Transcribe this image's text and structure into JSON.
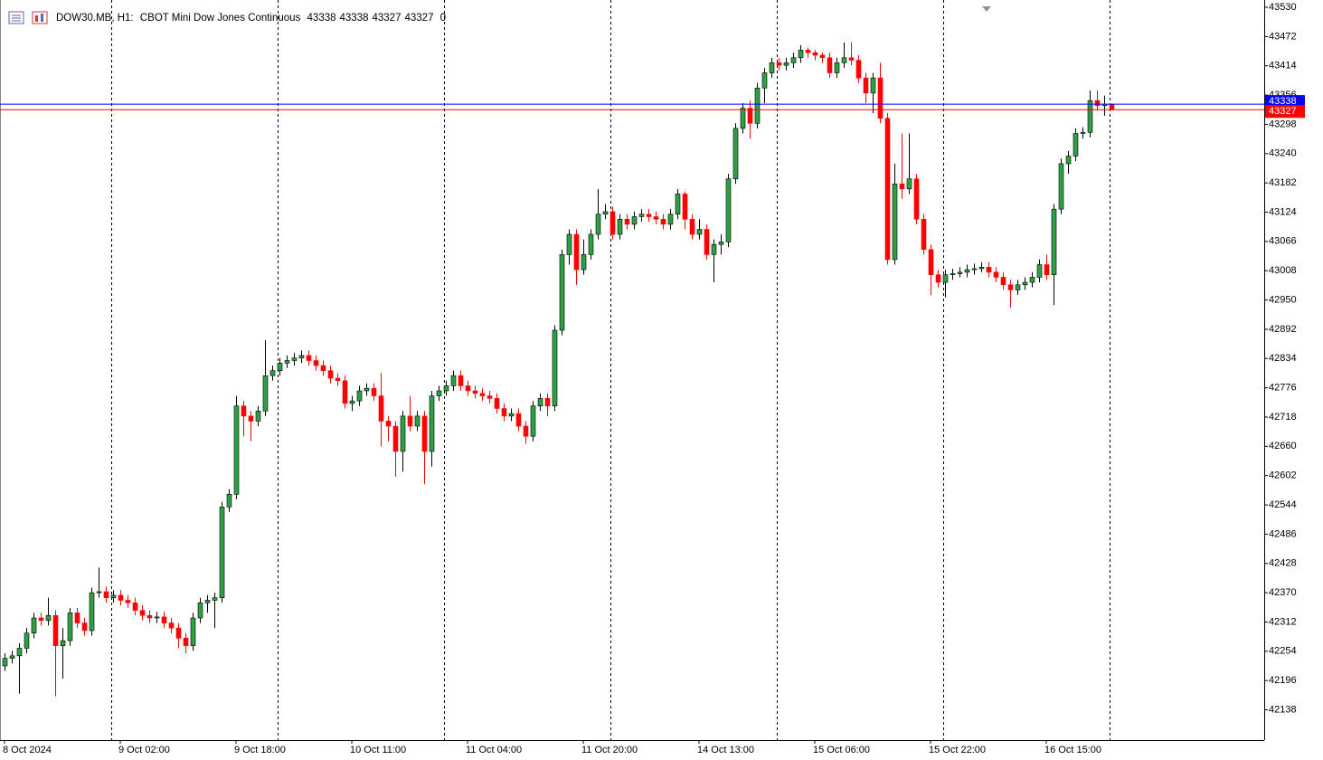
{
  "chart_data": {
    "type": "candlestick",
    "symbol": "DOW30.MB, H1:",
    "description": "CBOT Mini Dow Jones Continuous",
    "header_values": [
      43338,
      43338,
      43327,
      43327
    ],
    "volume": 0,
    "up_color": "#2ea043",
    "down_color": "#ff0000",
    "ylim": [
      42078,
      43530
    ],
    "yticks": [
      43530,
      43472,
      43414,
      43356,
      43298,
      43240,
      43182,
      43124,
      43066,
      43008,
      42950,
      42892,
      42834,
      42776,
      42718,
      42660,
      42602,
      42544,
      42486,
      42428,
      42370,
      42312,
      42254,
      42196,
      42138
    ],
    "price_lines": [
      {
        "value": 43338,
        "color": "#0000ff"
      },
      {
        "value": 43327,
        "color": "#ff0000"
      }
    ],
    "categories": [
      "8 Oct 2024",
      null,
      null,
      null,
      null,
      null,
      null,
      null,
      null,
      null,
      null,
      null,
      null,
      null,
      null,
      null,
      "9 Oct 02:00",
      null,
      null,
      null,
      null,
      null,
      null,
      null,
      null,
      null,
      null,
      null,
      null,
      null,
      null,
      null,
      "9 Oct 18:00",
      null,
      null,
      null,
      null,
      null,
      null,
      null,
      null,
      null,
      null,
      null,
      null,
      null,
      null,
      null,
      "10 Oct 11:00",
      null,
      null,
      null,
      null,
      null,
      null,
      null,
      null,
      null,
      null,
      null,
      null,
      null,
      null,
      null,
      "11 Oct 04:00",
      null,
      null,
      null,
      null,
      null,
      null,
      null,
      null,
      null,
      null,
      null,
      null,
      null,
      null,
      null,
      "11 Oct 20:00",
      null,
      null,
      null,
      null,
      null,
      null,
      null,
      null,
      null,
      null,
      null,
      null,
      null,
      null,
      null,
      "14 Oct 13:00",
      null,
      null,
      null,
      null,
      null,
      null,
      null,
      null,
      null,
      null,
      null,
      null,
      null,
      null,
      null,
      "15 Oct 06:00",
      null,
      null,
      null,
      null,
      null,
      null,
      null,
      null,
      null,
      null,
      null,
      null,
      null,
      null,
      null,
      "15 Oct 22:00",
      null,
      null,
      null,
      null,
      null,
      null,
      null,
      null,
      null,
      null,
      null,
      null,
      null,
      null,
      null,
      "16 Oct 15:00",
      null,
      null,
      null,
      null,
      null,
      null,
      null,
      null,
      null
    ],
    "open": [
      42225,
      42240,
      42245,
      42260,
      42290,
      42320,
      42315,
      42325,
      42265,
      42275,
      42330,
      42310,
      42295,
      42370,
      42372,
      42360,
      42365,
      42355,
      42350,
      42335,
      42325,
      42320,
      42322,
      42310,
      42300,
      42280,
      42265,
      42320,
      42350,
      42355,
      42360,
      42540,
      42565,
      42740,
      42720,
      42710,
      42730,
      42800,
      42810,
      42825,
      42830,
      42835,
      42840,
      42830,
      42820,
      42810,
      42795,
      42790,
      42745,
      42750,
      42770,
      42775,
      42760,
      42710,
      42700,
      42650,
      42720,
      42700,
      42720,
      42650,
      42760,
      42770,
      42780,
      42800,
      42780,
      42770,
      42765,
      42760,
      42755,
      42735,
      42720,
      42725,
      42700,
      42680,
      42740,
      42755,
      42740,
      42890,
      43040,
      43080,
      43010,
      43040,
      43080,
      43120,
      43125,
      43080,
      43110,
      43100,
      43115,
      43120,
      43115,
      43110,
      43100,
      43120,
      43160,
      43110,
      43080,
      43090,
      43040,
      43060,
      43065,
      43190,
      43290,
      43330,
      43300,
      43370,
      43400,
      43420,
      43415,
      43420,
      43430,
      43445,
      43440,
      43435,
      43430,
      43400,
      43420,
      43430,
      43425,
      43390,
      43360,
      43390,
      43310,
      43030,
      43180,
      43170,
      43190,
      43110,
      43050,
      43000,
      42985,
      43000,
      43002,
      43005,
      43010,
      43012,
      43015,
      43005,
      42995,
      42980,
      42970,
      42980,
      42985,
      42995,
      43020,
      43000,
      43130,
      43220,
      43235,
      43280,
      43282,
      43345,
      43335,
      43338
    ],
    "high": [
      42250,
      42255,
      42270,
      42300,
      42330,
      42330,
      42360,
      42335,
      42300,
      42340,
      42340,
      42320,
      42380,
      42420,
      42382,
      42375,
      42375,
      42365,
      42360,
      42345,
      42335,
      42332,
      42332,
      42320,
      42310,
      42290,
      42330,
      42360,
      42365,
      42370,
      42550,
      42575,
      42760,
      42750,
      42730,
      42740,
      42870,
      42820,
      42835,
      42840,
      42845,
      42850,
      42850,
      42840,
      42830,
      42820,
      42805,
      42800,
      42760,
      42780,
      42785,
      42785,
      42805,
      42720,
      42710,
      42730,
      42760,
      42730,
      42730,
      42770,
      42780,
      42790,
      42810,
      42810,
      42790,
      42780,
      42775,
      42770,
      42765,
      42745,
      42735,
      42735,
      42710,
      42750,
      42765,
      42765,
      42900,
      43050,
      43090,
      43090,
      43070,
      43090,
      43170,
      43140,
      43135,
      43120,
      43120,
      43125,
      43130,
      43130,
      43125,
      43120,
      43130,
      43170,
      43165,
      43120,
      43110,
      43100,
      43070,
      43080,
      43200,
      43300,
      43340,
      43345,
      43380,
      43410,
      43430,
      43430,
      43430,
      43440,
      43455,
      43450,
      43445,
      43440,
      43440,
      43430,
      43460,
      43460,
      43435,
      43400,
      43400,
      43420,
      43320,
      43220,
      43280,
      43280,
      43200,
      43120,
      43060,
      43010,
      43010,
      43012,
      43015,
      43020,
      43022,
      43025,
      43025,
      43015,
      43005,
      42990,
      42990,
      42995,
      43005,
      43030,
      43040,
      43140,
      43230,
      43245,
      43290,
      43292,
      43365,
      43365,
      43355,
      43338
    ],
    "low": [
      42215,
      42230,
      42170,
      42250,
      42280,
      42305,
      42305,
      42165,
      42200,
      42265,
      42300,
      42285,
      42285,
      42360,
      42350,
      42350,
      42345,
      42340,
      42325,
      42315,
      42310,
      42310,
      42300,
      42290,
      42260,
      42250,
      42255,
      42310,
      42330,
      42300,
      42350,
      42530,
      42555,
      42680,
      42670,
      42700,
      42720,
      42790,
      42800,
      42815,
      42820,
      42825,
      42820,
      42810,
      42800,
      42785,
      42780,
      42735,
      42730,
      42740,
      42760,
      42750,
      42660,
      42670,
      42600,
      42610,
      42690,
      42690,
      42585,
      42620,
      42750,
      42760,
      42770,
      42770,
      42760,
      42755,
      42750,
      42745,
      42725,
      42710,
      42710,
      42690,
      42665,
      42670,
      42730,
      42720,
      42730,
      42880,
      43020,
      42980,
      43000,
      43030,
      43070,
      43110,
      43070,
      43070,
      43090,
      43090,
      43105,
      43105,
      43100,
      43090,
      43090,
      43110,
      43090,
      43070,
      43070,
      43030,
      42985,
      43040,
      43055,
      43180,
      43280,
      43270,
      43290,
      43340,
      43390,
      43405,
      43405,
      43410,
      43420,
      43430,
      43425,
      43420,
      43390,
      43390,
      43410,
      43415,
      43380,
      43340,
      43320,
      43300,
      43020,
      43020,
      43150,
      43160,
      43100,
      43040,
      42960,
      42975,
      42955,
      42990,
      42995,
      42995,
      43000,
      43005,
      42995,
      42985,
      42970,
      42935,
      42960,
      42970,
      42975,
      42985,
      42990,
      42940,
      43120,
      43200,
      43225,
      43270,
      43272,
      43325,
      43315,
      43327
    ],
    "close": [
      42240,
      42245,
      42260,
      42290,
      42320,
      42315,
      42325,
      42265,
      42275,
      42330,
      42310,
      42295,
      42370,
      42372,
      42360,
      42365,
      42355,
      42350,
      42335,
      42325,
      42320,
      42322,
      42310,
      42300,
      42280,
      42265,
      42320,
      42350,
      42355,
      42360,
      42540,
      42565,
      42740,
      42720,
      42710,
      42730,
      42800,
      42810,
      42825,
      42830,
      42835,
      42840,
      42830,
      42820,
      42810,
      42795,
      42790,
      42745,
      42750,
      42770,
      42775,
      42760,
      42710,
      42700,
      42650,
      42720,
      42700,
      42720,
      42650,
      42760,
      42770,
      42780,
      42800,
      42780,
      42770,
      42765,
      42760,
      42755,
      42735,
      42720,
      42725,
      42700,
      42680,
      42740,
      42755,
      42740,
      42890,
      43040,
      43080,
      43010,
      43040,
      43080,
      43120,
      43125,
      43080,
      43110,
      43100,
      43115,
      43120,
      43115,
      43110,
      43100,
      43120,
      43160,
      43110,
      43080,
      43090,
      43040,
      43060,
      43065,
      43190,
      43290,
      43330,
      43300,
      43370,
      43400,
      43420,
      43415,
      43420,
      43430,
      43445,
      43440,
      43435,
      43430,
      43400,
      43420,
      43430,
      43425,
      43390,
      43360,
      43390,
      43310,
      43030,
      43180,
      43170,
      43190,
      43110,
      43050,
      43000,
      42985,
      43000,
      43002,
      43005,
      43010,
      43012,
      43015,
      43005,
      42995,
      42980,
      42970,
      42980,
      42985,
      42995,
      43020,
      43000,
      43130,
      43220,
      43235,
      43280,
      43282,
      43345,
      43335,
      43338,
      43327
    ]
  }
}
